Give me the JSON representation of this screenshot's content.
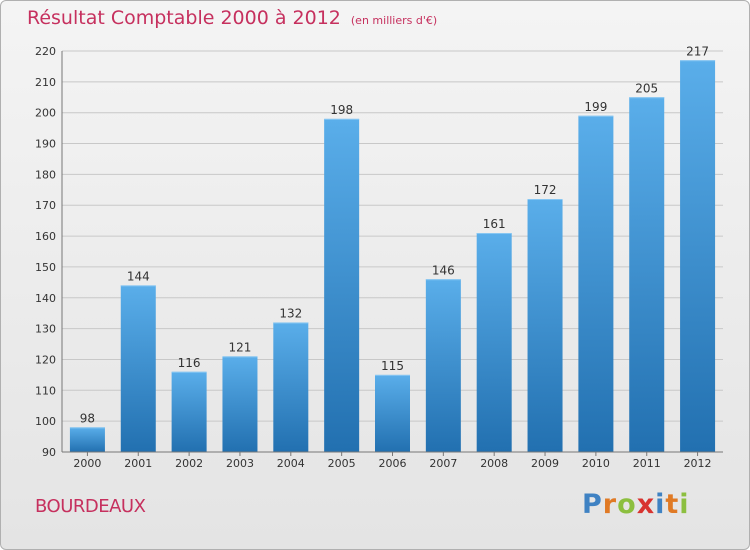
{
  "title": {
    "main": "Résultat Comptable 2000 à 2012",
    "unit": "(en milliers d'€)"
  },
  "commune": "BOURDEAUX",
  "logo": {
    "text": "Proxiti",
    "letter_colors": [
      "#3f82c3",
      "#e07a25",
      "#8cbf3f",
      "#d8332f",
      "#3f82c3",
      "#e07a25",
      "#8cbf3f"
    ]
  },
  "colors": {
    "title": "#c6305e",
    "bar_top": "#5aaeea",
    "bar_bottom": "#2270b0",
    "grid": "#c8c8c8",
    "axis_text": "#333333"
  },
  "chart_data": {
    "type": "bar",
    "title": "Résultat Comptable 2000 à 2012",
    "ylabel": "(en milliers d'€)",
    "xlabel": "",
    "categories": [
      "2000",
      "2001",
      "2002",
      "2003",
      "2004",
      "2005",
      "2006",
      "2007",
      "2008",
      "2009",
      "2010",
      "2011",
      "2012"
    ],
    "values": [
      98,
      144,
      116,
      121,
      132,
      198,
      115,
      146,
      161,
      172,
      199,
      205,
      217
    ],
    "ylim": [
      90,
      220
    ],
    "yticks": [
      90,
      100,
      110,
      120,
      130,
      140,
      150,
      160,
      170,
      180,
      190,
      200,
      210,
      220
    ],
    "grid": true
  }
}
